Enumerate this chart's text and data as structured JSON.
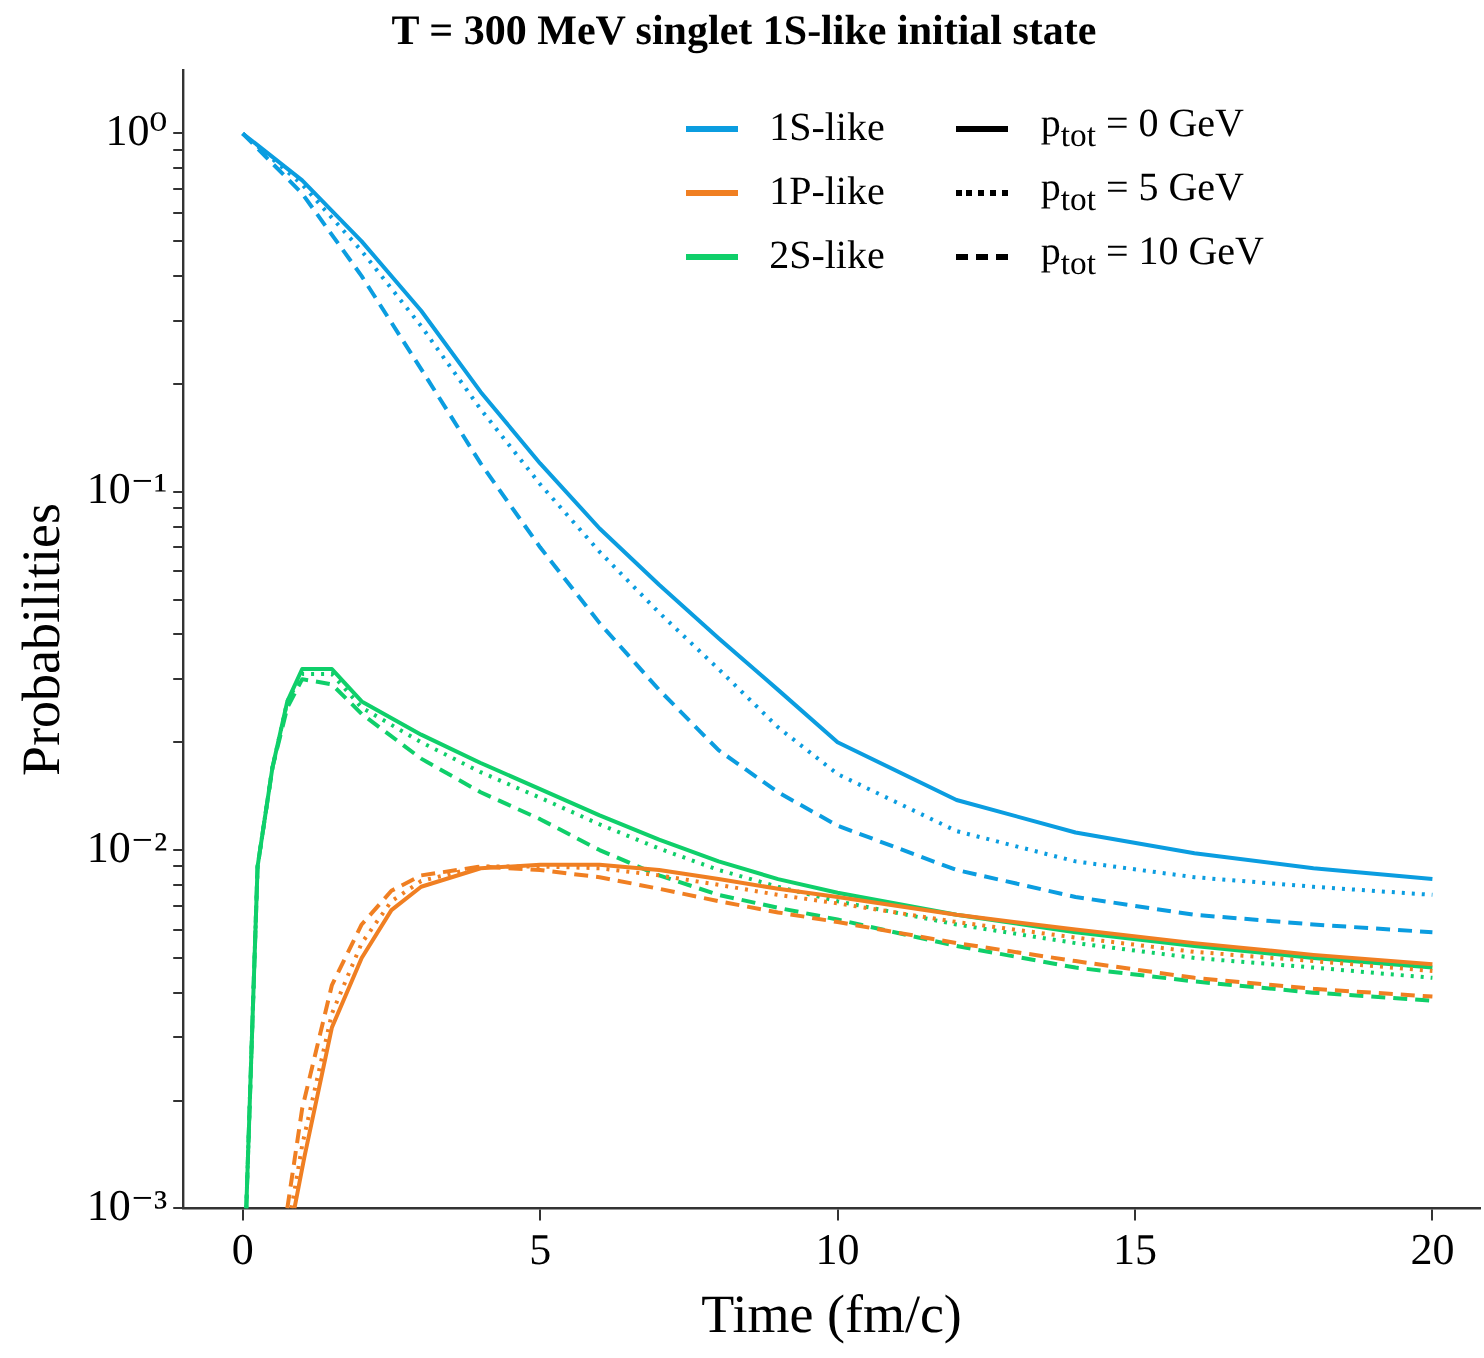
{
  "chart_data": {
    "type": "line",
    "title": "T = 300 MeV singlet 1S-like initial state",
    "xlabel": "Time (fm/c)",
    "ylabel": "Probabilities",
    "log": "y",
    "xlim": [
      -1,
      20.8
    ],
    "ylim": [
      0.001,
      1.5
    ],
    "xticks": [
      0,
      5,
      10,
      15,
      20
    ],
    "yticks": [
      {
        "value": 0.001,
        "label": "10⁻³"
      },
      {
        "value": 0.002,
        "label": null
      },
      {
        "value": 0.003,
        "label": null
      },
      {
        "value": 0.004,
        "label": null
      },
      {
        "value": 0.005,
        "label": null
      },
      {
        "value": 0.006,
        "label": null
      },
      {
        "value": 0.007,
        "label": null
      },
      {
        "value": 0.008,
        "label": null
      },
      {
        "value": 0.009,
        "label": null
      },
      {
        "value": 0.01,
        "label": "10⁻²"
      },
      {
        "value": 0.02,
        "label": null
      },
      {
        "value": 0.03,
        "label": null
      },
      {
        "value": 0.04,
        "label": null
      },
      {
        "value": 0.05,
        "label": null
      },
      {
        "value": 0.06,
        "label": null
      },
      {
        "value": 0.07,
        "label": null
      },
      {
        "value": 0.08,
        "label": null
      },
      {
        "value": 0.09,
        "label": null
      },
      {
        "value": 0.1,
        "label": "10⁻¹"
      },
      {
        "value": 0.2,
        "label": null
      },
      {
        "value": 0.3,
        "label": null
      },
      {
        "value": 0.4,
        "label": null
      },
      {
        "value": 0.5,
        "label": null
      },
      {
        "value": 0.6,
        "label": null
      },
      {
        "value": 0.7,
        "label": null
      },
      {
        "value": 0.8,
        "label": null
      },
      {
        "value": 0.9,
        "label": null
      },
      {
        "value": 1,
        "label": "10⁰"
      }
    ],
    "grid": false,
    "legend": "top right",
    "marker": "none",
    "series": [
      {
        "color": "#0b9de0",
        "line_style": "solid",
        "x": [
          0,
          1,
          2,
          3,
          4,
          5,
          6,
          7,
          8,
          9,
          10,
          12,
          14,
          16,
          18,
          20
        ],
        "values": [
          1,
          0.74,
          0.5,
          0.32,
          0.19,
          0.12,
          0.079,
          0.055,
          0.039,
          0.028,
          0.02,
          0.0138,
          0.0112,
          0.0098,
          0.0089,
          0.0083
        ]
      },
      {
        "color": "#0b9de0",
        "line_style": "dotted",
        "x": [
          0,
          1,
          2,
          3,
          4,
          5,
          6,
          7,
          8,
          9,
          10,
          12,
          14,
          16,
          18,
          20
        ],
        "values": [
          1,
          0.72,
          0.47,
          0.29,
          0.17,
          0.105,
          0.068,
          0.046,
          0.032,
          0.022,
          0.0163,
          0.0113,
          0.0093,
          0.0084,
          0.0079,
          0.0075
        ]
      },
      {
        "color": "#0b9de0",
        "line_style": "dashed",
        "x": [
          0,
          1,
          2,
          3,
          4,
          5,
          6,
          7,
          8,
          9,
          10,
          12,
          14,
          16,
          18,
          20
        ],
        "values": [
          1,
          0.68,
          0.4,
          0.22,
          0.12,
          0.07,
          0.043,
          0.028,
          0.019,
          0.0145,
          0.0117,
          0.0088,
          0.0074,
          0.0066,
          0.0062,
          0.0059
        ]
      },
      {
        "color": "#f07f22",
        "line_style": "solid",
        "x": [
          0.87,
          1.04,
          1.5,
          2,
          2.5,
          3,
          4,
          5,
          6,
          7,
          8,
          9,
          10,
          12,
          14,
          16,
          18,
          20
        ],
        "values": [
          0.001,
          0.0014,
          0.0032,
          0.005,
          0.0068,
          0.0079,
          0.0089,
          0.0091,
          0.0091,
          0.0088,
          0.0083,
          0.0078,
          0.0074,
          0.0066,
          0.006,
          0.0055,
          0.0051,
          0.0048
        ]
      },
      {
        "color": "#f07f22",
        "line_style": "dotted",
        "x": [
          0.82,
          1,
          1.5,
          2,
          2.5,
          3,
          4,
          5,
          6,
          7,
          8,
          9,
          10,
          12,
          14,
          16,
          18,
          20
        ],
        "values": [
          0.001,
          0.0015,
          0.0035,
          0.0055,
          0.0072,
          0.0082,
          0.009,
          0.009,
          0.0089,
          0.0085,
          0.008,
          0.0075,
          0.0071,
          0.0063,
          0.0057,
          0.0052,
          0.0049,
          0.0046
        ]
      },
      {
        "color": "#f07f22",
        "line_style": "dashed",
        "x": [
          0.75,
          1,
          1.5,
          2,
          2.5,
          3,
          4,
          5,
          6,
          7,
          8,
          9,
          10,
          12,
          14,
          16,
          18,
          20
        ],
        "values": [
          0.001,
          0.0019,
          0.0042,
          0.0062,
          0.0077,
          0.0085,
          0.009,
          0.0088,
          0.0084,
          0.0078,
          0.0072,
          0.0067,
          0.0063,
          0.0055,
          0.0049,
          0.0044,
          0.0041,
          0.0039
        ]
      },
      {
        "color": "#0fcf6a",
        "line_style": "solid",
        "x": [
          0.06,
          0.25,
          0.5,
          0.75,
          1,
          1.5,
          2,
          3,
          4,
          5,
          6,
          7,
          8,
          9,
          10,
          12,
          14,
          16,
          18,
          20
        ],
        "values": [
          0.001,
          0.009,
          0.017,
          0.026,
          0.032,
          0.032,
          0.026,
          0.021,
          0.0175,
          0.0148,
          0.0125,
          0.0107,
          0.0093,
          0.0083,
          0.0076,
          0.0066,
          0.0059,
          0.0054,
          0.005,
          0.0047
        ]
      },
      {
        "color": "#0fcf6a",
        "line_style": "dotted",
        "x": [
          0.06,
          0.25,
          0.5,
          0.75,
          1,
          1.5,
          2,
          3,
          4,
          5,
          6,
          7,
          8,
          9,
          10,
          12,
          14,
          16,
          18,
          20
        ],
        "values": [
          0.001,
          0.009,
          0.017,
          0.026,
          0.031,
          0.031,
          0.025,
          0.02,
          0.0165,
          0.014,
          0.0118,
          0.0101,
          0.0088,
          0.0079,
          0.0072,
          0.0062,
          0.0055,
          0.005,
          0.0047,
          0.0044
        ]
      },
      {
        "color": "#0fcf6a",
        "line_style": "dashed",
        "x": [
          0.06,
          0.25,
          0.5,
          0.75,
          1,
          1.5,
          2,
          3,
          4,
          5,
          6,
          7,
          8,
          9,
          10,
          12,
          14,
          16,
          18,
          20
        ],
        "values": [
          0.001,
          0.009,
          0.017,
          0.025,
          0.03,
          0.029,
          0.024,
          0.018,
          0.0145,
          0.0122,
          0.01,
          0.0085,
          0.0075,
          0.0069,
          0.0064,
          0.0054,
          0.0047,
          0.0043,
          0.004,
          0.0038
        ]
      },
      {
        "name": "1S-like",
        "color": "#0b9de0",
        "line_style": "solid"
      },
      {
        "name": "1P-like",
        "color": "#f07f22",
        "line_style": "solid"
      },
      {
        "name": "2S-like",
        "color": "#0fcf6a",
        "line_style": "solid"
      },
      {
        "name": "p$_{tot}$ = 0 GeV",
        "color": "#000000",
        "line_style": "solid"
      },
      {
        "name": "p$_{tot}$ = 5 GeV",
        "color": "#000000",
        "line_style": "dotted"
      },
      {
        "name": "p$_{tot}$ = 10 GeV",
        "color": "#000000",
        "line_style": "dashed"
      }
    ]
  }
}
